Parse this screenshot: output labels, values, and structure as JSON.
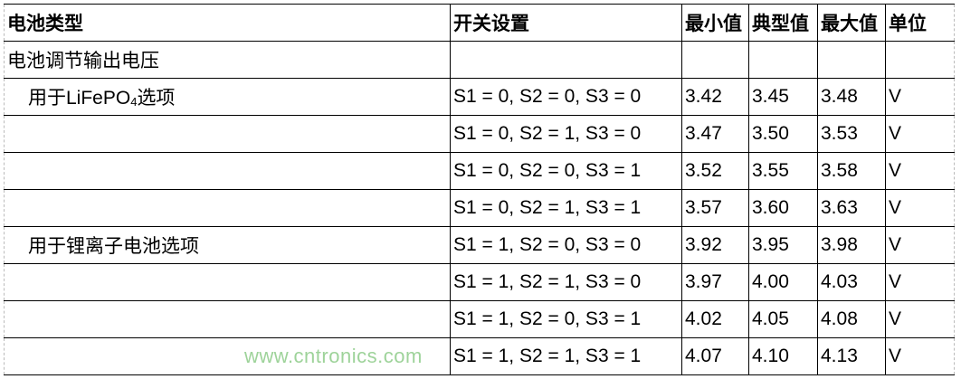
{
  "headers": [
    "电池类型",
    "开关设置",
    "最小值",
    "典型值",
    "最大值",
    "单位"
  ],
  "section_label": "电池调节输出电压",
  "groups": [
    {
      "label_prefix": "用于LiFePO",
      "label_sub": "4",
      "label_suffix": "选项",
      "rows": [
        {
          "switch": "S1 = 0, S2 = 0, S3 = 0",
          "min": "3.42",
          "typ": "3.45",
          "max": "3.48",
          "unit": "V"
        },
        {
          "switch": "S1 = 0, S2 = 1, S3 = 0",
          "min": "3.47",
          "typ": "3.50",
          "max": "3.53",
          "unit": "V"
        },
        {
          "switch": "S1 = 0, S2 = 0, S3 = 1",
          "min": "3.52",
          "typ": "3.55",
          "max": "3.58",
          "unit": "V"
        },
        {
          "switch": "S1 = 0, S2 = 1, S3 = 1",
          "min": "3.57",
          "typ": "3.60",
          "max": "3.63",
          "unit": "V"
        }
      ]
    },
    {
      "label_prefix": "用于锂离子电池选项",
      "label_sub": "",
      "label_suffix": "",
      "rows": [
        {
          "switch": "S1 = 1, S2 = 0, S3 = 0",
          "min": "3.92",
          "typ": "3.95",
          "max": "3.98",
          "unit": "V"
        },
        {
          "switch": "S1 = 1, S2 = 1, S3 = 0",
          "min": "3.97",
          "typ": "4.00",
          "max": "4.03",
          "unit": "V"
        },
        {
          "switch": "S1 = 1, S2 = 0, S3 = 1",
          "min": "4.02",
          "typ": "4.05",
          "max": "4.08",
          "unit": "V"
        },
        {
          "switch": "S1 = 1, S2 = 1, S3 = 1",
          "min": "4.07",
          "typ": "4.10",
          "max": "4.13",
          "unit": "V"
        }
      ]
    }
  ],
  "watermark": "www.cntronics.com"
}
